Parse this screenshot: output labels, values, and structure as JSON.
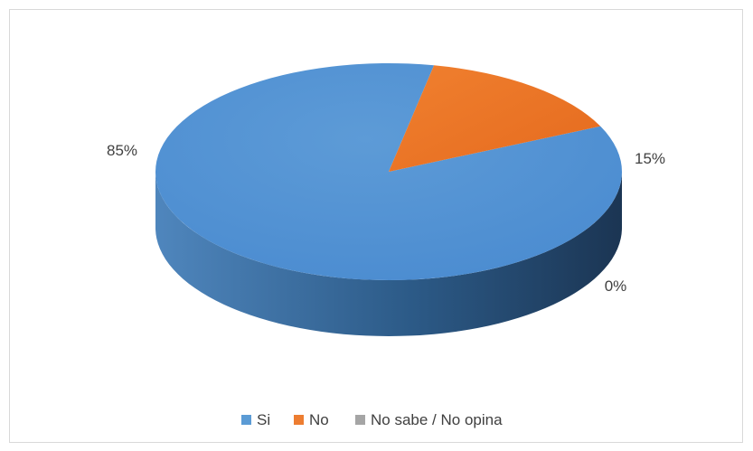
{
  "chart_data": {
    "type": "pie",
    "style": "3d",
    "categories": [
      "Si",
      "No",
      "No sabe / No opina"
    ],
    "values": [
      85,
      15,
      0
    ],
    "data_labels": [
      "85%",
      "15%",
      "0%"
    ],
    "colors": [
      "#5B9BD5",
      "#ED7D31",
      "#A5A5A5"
    ],
    "legend_position": "bottom"
  }
}
